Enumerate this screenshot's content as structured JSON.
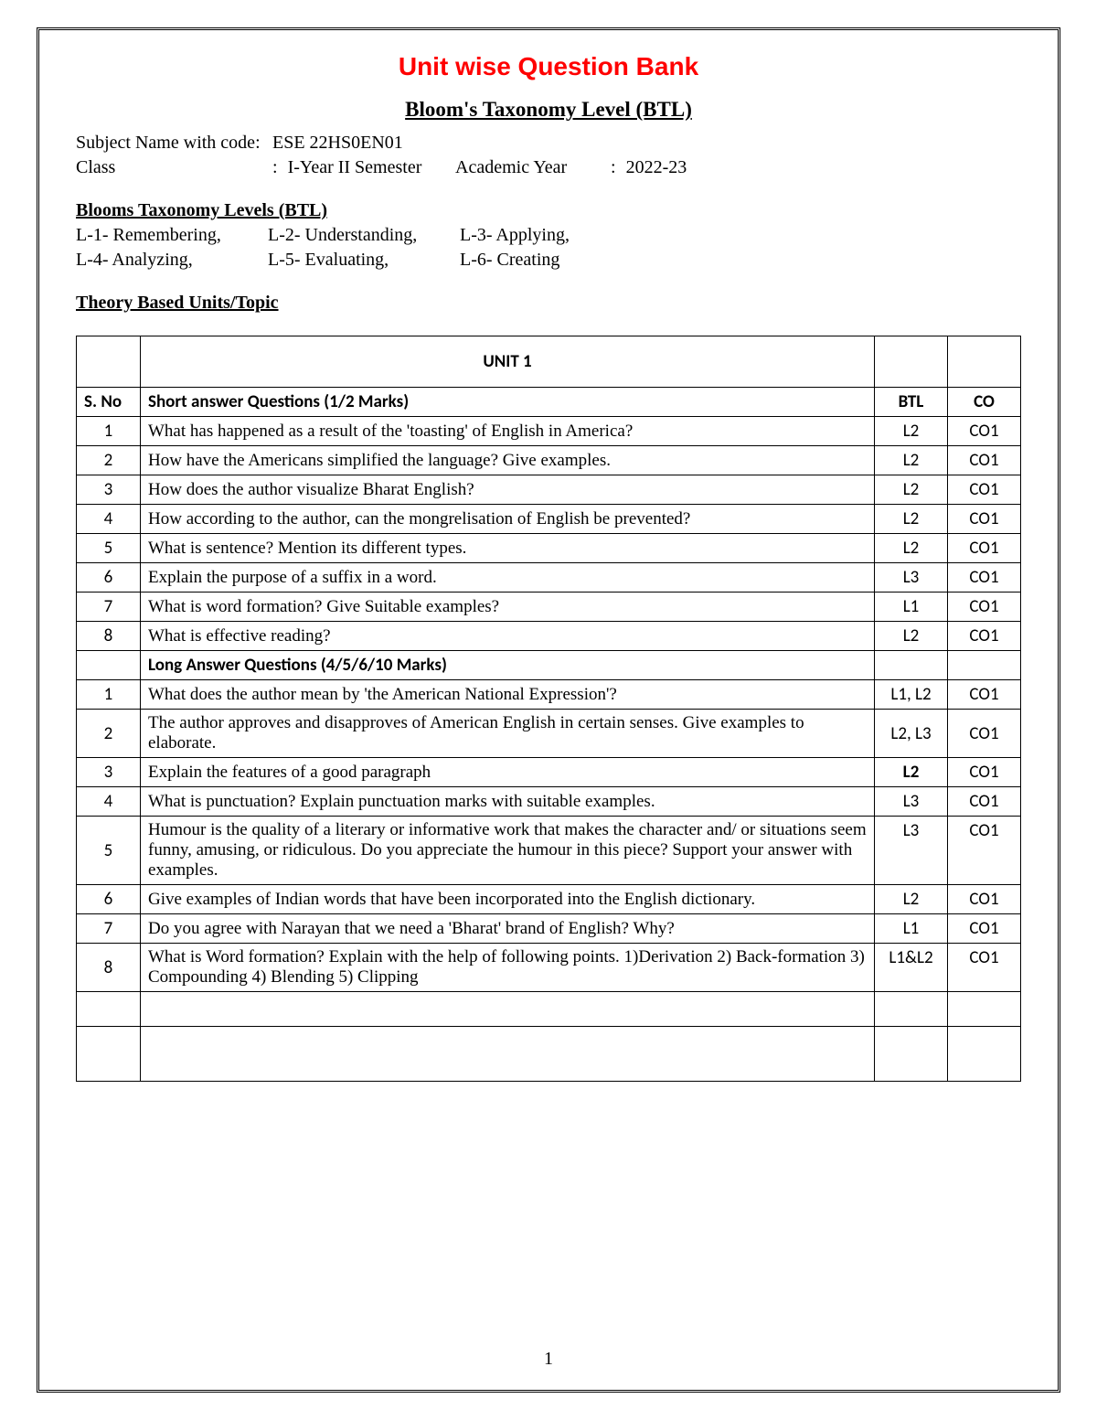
{
  "title": "Unit wise Question Bank",
  "subtitle": "Bloom's Taxonomy Level (BTL)",
  "meta": {
    "subject_label": "Subject Name with code",
    "subject_value": "ESE  22HS0EN01",
    "class_label": "Class",
    "class_value": "I-Year II Semester",
    "ay_label": "Academic Year",
    "ay_value": "2022-23"
  },
  "btl_heading": "Blooms Taxonomy Levels (BTL)",
  "btl_levels": {
    "l1": "L-1- Remembering,",
    "l2": "L-2- Understanding,",
    "l3": "L-3- Applying,",
    "l4": "L-4- Analyzing,",
    "l5": "L-5- Evaluating,",
    "l6": "L-6- Creating"
  },
  "theory_heading": "Theory Based Units/Topic",
  "table": {
    "unit_title": "UNIT 1",
    "headers": {
      "sno": "S. No",
      "q": "Short answer Questions (1/2 Marks)",
      "btl": "BTL",
      "co": "CO"
    },
    "short": [
      {
        "n": "1",
        "q": "What has happened as a result of the 'toasting' of English in America?",
        "btl": "L2",
        "co": "CO1"
      },
      {
        "n": "2",
        "q": "How have the Americans simplified the language? Give examples.",
        "btl": "L2",
        "co": "CO1"
      },
      {
        "n": "3",
        "q": "How does the author visualize Bharat English?",
        "btl": "L2",
        "co": "CO1"
      },
      {
        "n": "4",
        "q": "How according to the author, can the mongrelisation of English be prevented?",
        "btl": "L2",
        "co": "CO1"
      },
      {
        "n": "5",
        "q": "What is sentence? Mention its different types.",
        "btl": "L2",
        "co": "CO1"
      },
      {
        "n": "6",
        "q": "Explain the purpose of a suffix in a word.",
        "btl": "L3",
        "co": "CO1"
      },
      {
        "n": "7",
        "q": "What is word formation? Give Suitable examples?",
        "btl": "L1",
        "co": "CO1"
      },
      {
        "n": "8",
        "q": "What is effective reading?",
        "btl": "L2",
        "co": "CO1"
      }
    ],
    "long_header": "Long Answer Questions (4/5/6/10 Marks)",
    "long": [
      {
        "n": "1",
        "q": "What does the author mean by 'the American National Expression'?",
        "btl": "L1, L2",
        "co": "CO1"
      },
      {
        "n": "2",
        "q": "The author approves and disapproves of American English in certain senses. Give examples to elaborate.",
        "btl": "L2, L3",
        "co": "CO1"
      },
      {
        "n": "3",
        "q": "Explain the features of a good paragraph",
        "btl": "L2",
        "co": "CO1",
        "btl_bold": true
      },
      {
        "n": "4",
        "q": "What is punctuation? Explain punctuation marks with suitable examples.",
        "btl": "L3",
        "co": "CO1"
      },
      {
        "n": "5",
        "q": "Humour is the quality of a literary or informative work that makes the character and/ or situations seem funny, amusing, or ridiculous. Do you appreciate the humour in this piece? Support your answer with examples.",
        "btl": "L3",
        "co": "CO1",
        "top": true
      },
      {
        "n": "6",
        "q": "Give examples of Indian words that have been incorporated into the English dictionary.",
        "btl": "L2",
        "co": "CO1",
        "top": true
      },
      {
        "n": "7",
        "q": "Do you agree with Narayan that we need a 'Bharat' brand of English? Why?",
        "btl": "L1",
        "co": "CO1",
        "top": true
      },
      {
        "n": "8",
        "q": "What is Word formation? Explain with the help of following points. 1)Derivation 2) Back-formation 3) Compounding 4) Blending 5) Clipping",
        "btl": "L1&L2",
        "co": "CO1",
        "top": true
      }
    ]
  },
  "page_number": "1",
  "colors": {
    "title": "#ff0000",
    "text": "#000000",
    "border": "#000000",
    "bg": "#ffffff"
  }
}
